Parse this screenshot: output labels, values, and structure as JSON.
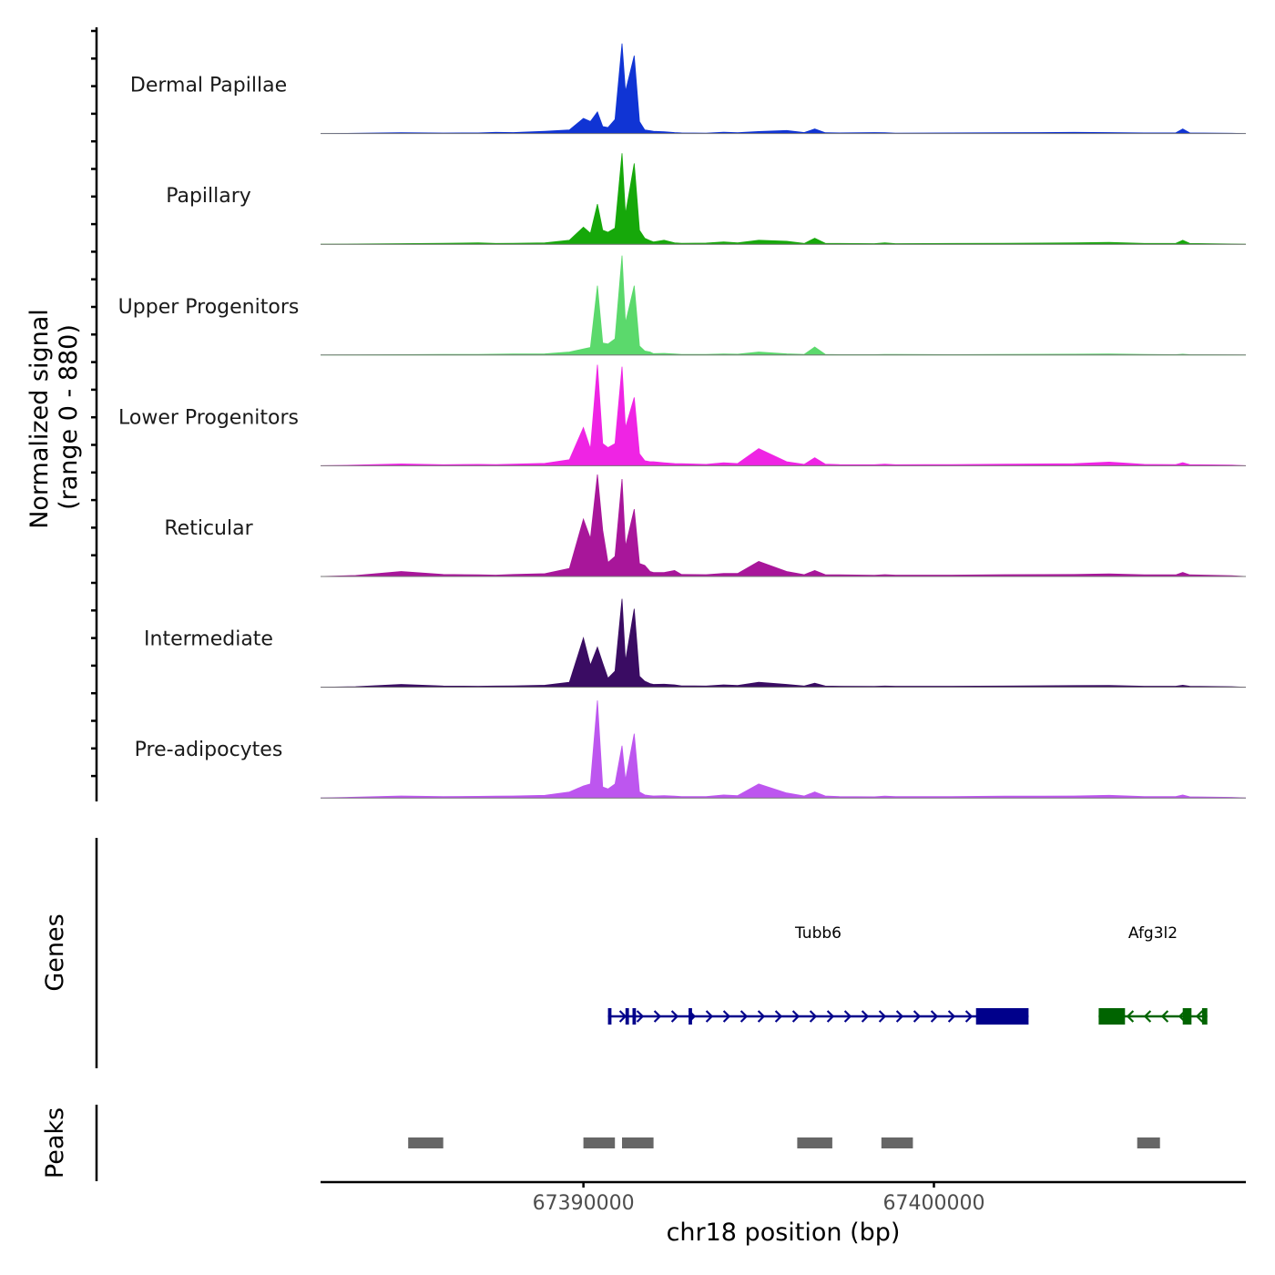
{
  "chart_data": {
    "type": "area",
    "title": "",
    "region": "chr18",
    "xlabel": "chr18 position (bp)",
    "ylabel_line1": "Normalized signal",
    "ylabel_line2": "(range 0 - 880)",
    "y_range": [
      0,
      880
    ],
    "xlim": [
      67382500,
      67408900
    ],
    "x_ticks": [
      67390000,
      67400000
    ],
    "x_tick_labels": [
      "67390000",
      "67400000"
    ],
    "track_positions": [
      67382500,
      67383500,
      67384800,
      67386000,
      67387000,
      67387500,
      67388000,
      67388900,
      67389600,
      67390000,
      67390200,
      67390400,
      67390550,
      67390700,
      67390900,
      67391100,
      67391200,
      67391450,
      67391600,
      67391750,
      67391900,
      67392000,
      67392300,
      67392600,
      67392800,
      67393500,
      67394000,
      67394400,
      67395000,
      67395800,
      67396300,
      67396600,
      67396900,
      67397300,
      67398300,
      67398600,
      67398900,
      67400500,
      67402000,
      67404000,
      67405000,
      67406000,
      67406900,
      67407100,
      67407300,
      67408500,
      67408900
    ],
    "tracks": [
      {
        "name": "Dermal Papillae",
        "color": "#1034d4",
        "values": [
          0,
          3,
          8,
          5,
          6,
          12,
          10,
          22,
          35,
          150,
          120,
          215,
          70,
          60,
          140,
          895,
          420,
          775,
          120,
          35,
          28,
          22,
          18,
          10,
          6,
          4,
          14,
          8,
          20,
          30,
          10,
          45,
          8,
          6,
          10,
          8,
          4,
          6,
          8,
          12,
          10,
          6,
          6,
          45,
          6,
          3,
          0
        ]
      },
      {
        "name": "Papillary",
        "color": "#16a80a",
        "values": [
          0,
          3,
          6,
          10,
          14,
          8,
          10,
          14,
          40,
          170,
          110,
          400,
          140,
          120,
          160,
          905,
          300,
          805,
          140,
          60,
          36,
          24,
          40,
          14,
          10,
          12,
          24,
          14,
          40,
          30,
          8,
          60,
          10,
          8,
          6,
          14,
          6,
          8,
          10,
          14,
          18,
          8,
          8,
          40,
          8,
          3,
          0
        ]
      },
      {
        "name": "Upper Progenitors",
        "color": "#5bd96c",
        "values": [
          0,
          2,
          4,
          5,
          6,
          8,
          10,
          12,
          30,
          60,
          75,
          690,
          120,
          110,
          160,
          990,
          320,
          690,
          90,
          40,
          30,
          14,
          16,
          10,
          6,
          6,
          10,
          8,
          30,
          12,
          6,
          80,
          6,
          4,
          4,
          6,
          6,
          4,
          6,
          8,
          10,
          5,
          4,
          8,
          4,
          2,
          0
        ]
      },
      {
        "name": "Lower Progenitors",
        "color": "#ef24e4",
        "values": [
          0,
          6,
          18,
          10,
          14,
          12,
          16,
          24,
          60,
          380,
          170,
          1005,
          220,
          180,
          220,
          985,
          380,
          680,
          120,
          50,
          40,
          40,
          30,
          22,
          20,
          14,
          30,
          22,
          170,
          40,
          14,
          80,
          16,
          12,
          10,
          16,
          10,
          12,
          16,
          20,
          36,
          14,
          12,
          30,
          12,
          6,
          0
        ]
      },
      {
        "name": "Reticular",
        "color": "#a8169a",
        "values": [
          0,
          10,
          50,
          20,
          16,
          14,
          20,
          28,
          80,
          570,
          380,
          1015,
          460,
          140,
          200,
          970,
          300,
          670,
          130,
          110,
          50,
          40,
          40,
          60,
          20,
          18,
          30,
          30,
          150,
          50,
          18,
          60,
          18,
          16,
          12,
          18,
          14,
          14,
          18,
          20,
          26,
          16,
          16,
          40,
          16,
          8,
          0
        ]
      },
      {
        "name": "Intermediate",
        "color": "#3a0c63",
        "values": [
          0,
          5,
          28,
          12,
          10,
          12,
          14,
          20,
          50,
          490,
          220,
          400,
          240,
          90,
          160,
          880,
          260,
          780,
          110,
          60,
          36,
          28,
          30,
          24,
          14,
          12,
          24,
          18,
          50,
          28,
          12,
          40,
          12,
          10,
          8,
          12,
          10,
          10,
          12,
          16,
          18,
          10,
          10,
          20,
          10,
          5,
          0
        ]
      },
      {
        "name": "Pre-adipocytes",
        "color": "#bd56ef",
        "values": [
          0,
          8,
          20,
          14,
          16,
          18,
          20,
          26,
          60,
          120,
          140,
          970,
          110,
          90,
          140,
          520,
          180,
          640,
          60,
          30,
          24,
          20,
          24,
          18,
          14,
          14,
          30,
          24,
          140,
          50,
          20,
          60,
          20,
          14,
          12,
          18,
          14,
          14,
          18,
          20,
          26,
          14,
          14,
          30,
          12,
          6,
          0
        ]
      }
    ],
    "genes_label": "Genes",
    "genes": [
      {
        "name": "Tubb6",
        "start": 67390700,
        "end": 67402700,
        "strand": "+",
        "color": "#00008b",
        "exons": [
          [
            67390700,
            67390800
          ],
          [
            67391200,
            67391300
          ],
          [
            67391400,
            67391500
          ],
          [
            67393000,
            67393100
          ],
          [
            67401200,
            67402700
          ]
        ]
      },
      {
        "name": "Afg3l2",
        "start": 67404700,
        "end": 67407800,
        "strand": "-",
        "color": "#006400",
        "exons": [
          [
            67404700,
            67405450
          ],
          [
            67407100,
            67407350
          ],
          [
            67407650,
            67407800
          ]
        ]
      }
    ],
    "peaks_label": "Peaks",
    "peaks": [
      [
        67385000,
        67386000
      ],
      [
        67390000,
        67390900
      ],
      [
        67391100,
        67392000
      ],
      [
        67396100,
        67397100
      ],
      [
        67398500,
        67399400
      ],
      [
        67405800,
        67406450
      ]
    ],
    "peak_color": "#666666"
  }
}
